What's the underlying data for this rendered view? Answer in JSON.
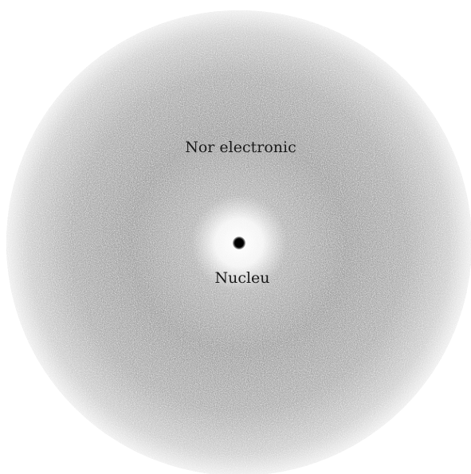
{
  "diagram": {
    "cloud_label": "Nor electronic",
    "nucleus_label": "Nucleu"
  },
  "colors": {
    "cloud": "#8c8c8c",
    "nucleus": "#000000",
    "background": "#ffffff"
  }
}
